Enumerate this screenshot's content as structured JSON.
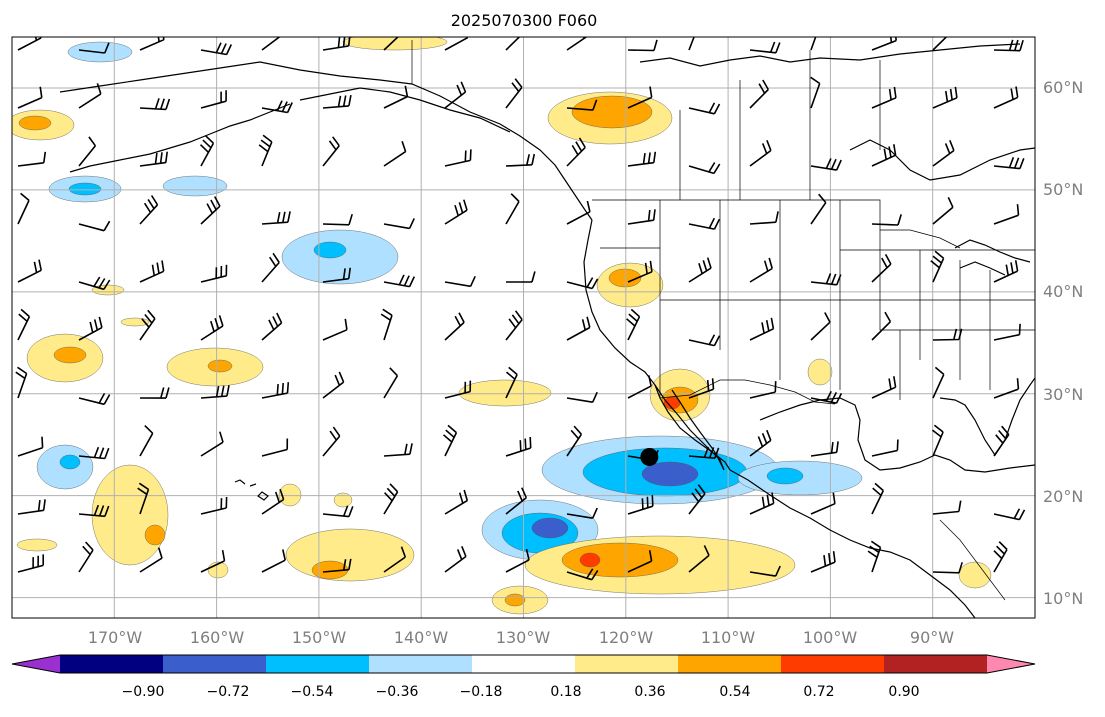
{
  "title": "2025070300 F060",
  "map": {
    "projection": "PlateCarree",
    "lon_range": [
      -180,
      -80
    ],
    "lat_range": [
      8,
      65
    ],
    "lon_ticks": [
      "170°W",
      "160°W",
      "150°W",
      "140°W",
      "130°W",
      "120°W",
      "110°W",
      "100°W",
      "90°W"
    ],
    "lat_ticks": [
      "10°N",
      "20°N",
      "30°N",
      "40°N",
      "50°N",
      "60°N"
    ],
    "grid": true,
    "wind_barbs": true,
    "marker": {
      "lon": -117.7,
      "lat": 23.8
    }
  },
  "colorbar": {
    "orientation": "horizontal",
    "extend": "both",
    "tick_labels": [
      "−0.90",
      "−0.72",
      "−0.54",
      "−0.36",
      "−0.18",
      "0.18",
      "0.36",
      "0.54",
      "0.72",
      "0.90"
    ],
    "colors": [
      "#9b30d0",
      "#000080",
      "#3a5fcd",
      "#00bfff",
      "#b0e0ff",
      "#ffffff",
      "#ffeb8a",
      "#ffa500",
      "#ff3c00",
      "#b22222",
      "#ff88b0"
    ]
  }
}
